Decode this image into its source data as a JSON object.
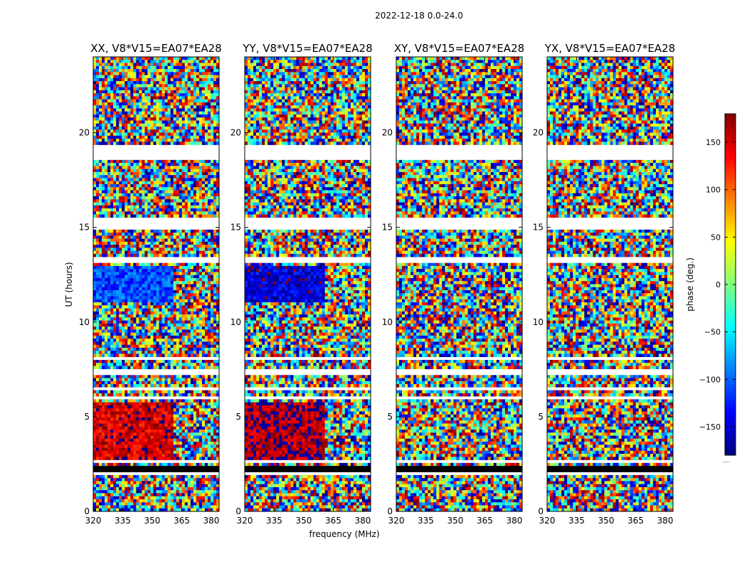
{
  "figure": {
    "suptitle": "2022-12-18 0.0-24.0"
  },
  "chart_data": [
    {
      "type": "heatmap",
      "title": "XX, V8*V15=EA07*EA28",
      "xlabel": "frequency (MHz)",
      "ylabel": "UT (hours)",
      "xlim": [
        320,
        384
      ],
      "ylim": [
        0,
        24
      ],
      "xticks": [
        320,
        335,
        350,
        365,
        380
      ],
      "yticks": [
        0,
        5,
        10,
        15,
        20
      ],
      "coherent_regions": [
        {
          "ut": [
            2.7,
            5.8
          ],
          "freq": [
            320,
            361
          ],
          "phase_deg": 150
        },
        {
          "ut": [
            11.0,
            13.0
          ],
          "freq": [
            320,
            361
          ],
          "phase_deg": -110
        }
      ]
    },
    {
      "type": "heatmap",
      "title": "YY, V8*V15=EA07*EA28",
      "xlabel": "frequency (MHz)",
      "ylabel": "",
      "xlim": [
        320,
        384
      ],
      "ylim": [
        0,
        24
      ],
      "xticks": [
        320,
        335,
        350,
        365,
        380
      ],
      "yticks": [
        0,
        5,
        10,
        15,
        20
      ],
      "coherent_regions": [
        {
          "ut": [
            2.7,
            5.8
          ],
          "freq": [
            320,
            361
          ],
          "phase_deg": 165
        },
        {
          "ut": [
            11.0,
            13.0
          ],
          "freq": [
            320,
            361
          ],
          "phase_deg": -150
        }
      ]
    },
    {
      "type": "heatmap",
      "title": "XY, V8*V15=EA07*EA28",
      "xlabel": "frequency (MHz)",
      "ylabel": "",
      "xlim": [
        320,
        384
      ],
      "ylim": [
        0,
        24
      ],
      "xticks": [
        320,
        335,
        350,
        365,
        380
      ],
      "yticks": [
        0,
        5,
        10,
        15,
        20
      ],
      "coherent_regions": []
    },
    {
      "type": "heatmap",
      "title": "YX, V8*V15=EA07*EA28",
      "xlabel": "frequency (MHz)",
      "ylabel": "",
      "xlim": [
        320,
        384
      ],
      "ylim": [
        0,
        24
      ],
      "xticks": [
        320,
        335,
        350,
        365,
        380
      ],
      "yticks": [
        0,
        5,
        10,
        15,
        20
      ],
      "coherent_regions": []
    }
  ],
  "flagged_ut_hours": [
    [
      1.05,
      1.15
    ],
    [
      2.0,
      2.1
    ],
    [
      2.35,
      2.45
    ],
    [
      2.55,
      2.7
    ],
    [
      6.0,
      6.15
    ],
    [
      6.4,
      6.5
    ],
    [
      7.2,
      7.5
    ],
    [
      8.05,
      8.12
    ],
    [
      13.2,
      13.45
    ],
    [
      14.8,
      15.5
    ],
    [
      16.0,
      16.08
    ],
    [
      16.6,
      16.65
    ],
    [
      17.3,
      17.35
    ],
    [
      18.6,
      19.3
    ],
    [
      19.8,
      19.88
    ],
    [
      21.05,
      21.1
    ],
    [
      23.15,
      23.2
    ]
  ],
  "blackout_ut_hours": [
    [
      2.12,
      2.35
    ],
    [
      14.05,
      14.15
    ]
  ],
  "colorbar": {
    "label": "phase (deg.)",
    "range": [
      -180,
      180
    ],
    "ticks": [
      150,
      100,
      50,
      0,
      -50,
      -100,
      -150
    ],
    "tick_labels": [
      "150",
      "100",
      "50",
      "0",
      "−50",
      "−100",
      "−150"
    ],
    "colormap": "jet",
    "footer": "....."
  }
}
